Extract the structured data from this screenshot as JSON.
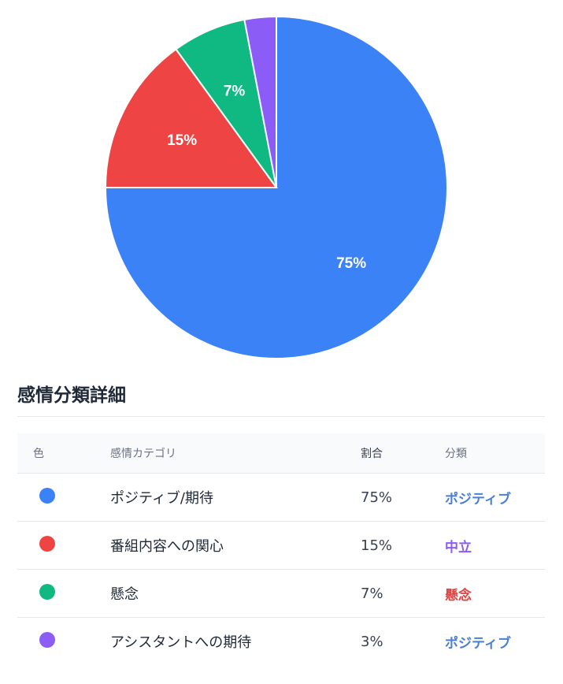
{
  "chart_data": {
    "type": "pie",
    "slices": [
      {
        "label": "ポジティブ/期待",
        "value": 75,
        "display": "75%",
        "color": "#3b82f6"
      },
      {
        "label": "番組内容への関心",
        "value": 15,
        "display": "15%",
        "color": "#ef4444"
      },
      {
        "label": "懸念",
        "value": 7,
        "display": "7%",
        "color": "#10b981"
      },
      {
        "label": "アシスタントへの期待",
        "value": 3,
        "display": "",
        "color": "#8b5cf6"
      }
    ],
    "start": "12 o'clock",
    "direction": "clockwise"
  },
  "details": {
    "title": "感情分類詳細",
    "headers": {
      "color": "色",
      "category": "感情カテゴリ",
      "ratio": "割合",
      "classification": "分類"
    },
    "rows": [
      {
        "category": "ポジティブ/期待",
        "ratio": "75%",
        "classification": "ポジティブ",
        "dot_color": "#3b82f6",
        "class_color": "#4a7fd6"
      },
      {
        "category": "番組内容への関心",
        "ratio": "15%",
        "classification": "中立",
        "dot_color": "#ef4444",
        "class_color": "#8b5cf6"
      },
      {
        "category": "懸念",
        "ratio": "7%",
        "classification": "懸念",
        "dot_color": "#10b981",
        "class_color": "#dc4444"
      },
      {
        "category": "アシスタントへの期待",
        "ratio": "3%",
        "classification": "ポジティブ",
        "dot_color": "#8b5cf6",
        "class_color": "#4a7fd6"
      }
    ]
  }
}
